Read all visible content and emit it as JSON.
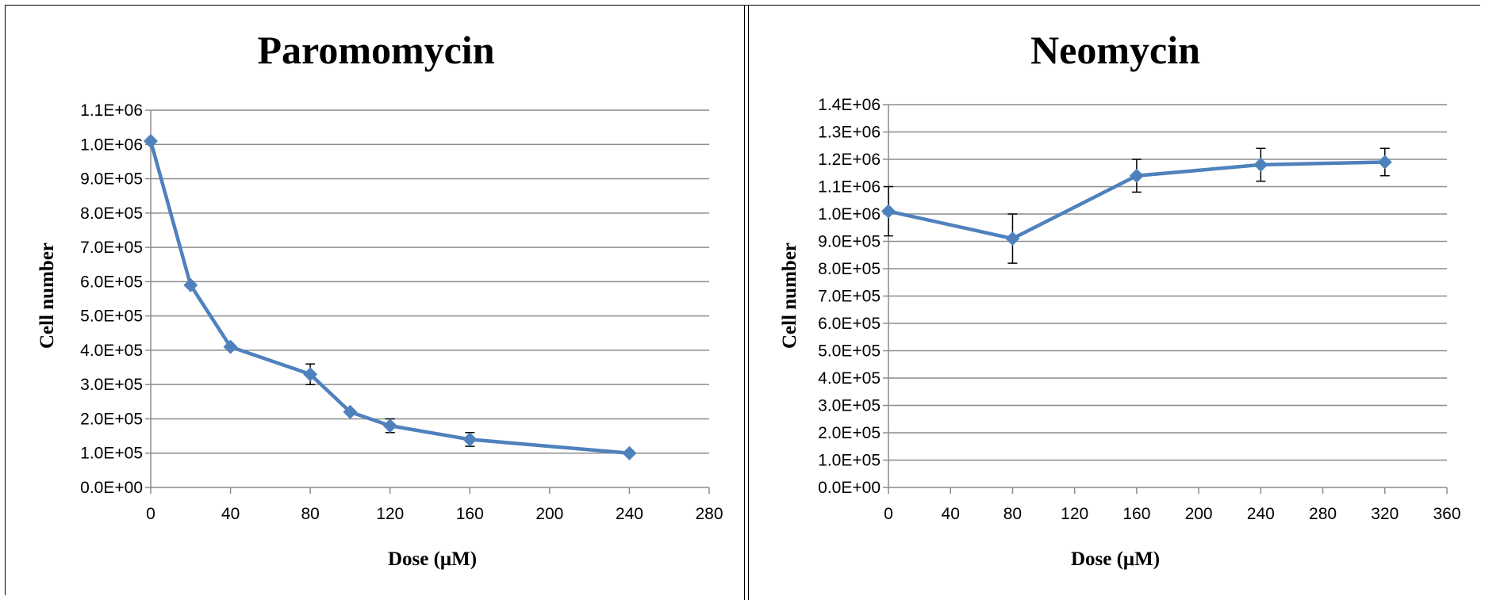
{
  "chart_data": [
    {
      "type": "line",
      "title": "Paromomycin",
      "xlabel": "Dose (μM)",
      "ylabel": "Cell number",
      "x_ticks": [
        0,
        40,
        80,
        120,
        160,
        200,
        240,
        280
      ],
      "x_tick_labels": [
        "0",
        "40",
        "80",
        "120",
        "160",
        "200",
        "240",
        "280"
      ],
      "xlim": [
        0,
        280
      ],
      "y_ticks": [
        0,
        100000,
        200000,
        300000,
        400000,
        500000,
        600000,
        700000,
        800000,
        900000,
        1000000,
        1100000
      ],
      "y_tick_labels": [
        "0.0E+00",
        "1.0E+05",
        "2.0E+05",
        "3.0E+05",
        "4.0E+05",
        "5.0E+05",
        "6.0E+05",
        "7.0E+05",
        "8.0E+05",
        "9.0E+05",
        "1.0E+06",
        "1.1E+06"
      ],
      "ylim": [
        0,
        1100000
      ],
      "grid": true,
      "series": [
        {
          "color": "#4f81bd",
          "x": [
            0,
            20,
            40,
            80,
            100,
            120,
            160,
            240
          ],
          "y": [
            1010000,
            590000,
            410000,
            330000,
            220000,
            180000,
            140000,
            100000
          ],
          "error": [
            0,
            0,
            0,
            30000,
            0,
            20000,
            20000,
            0
          ]
        }
      ]
    },
    {
      "type": "line",
      "title": "Neomycin",
      "xlabel": "Dose (μM)",
      "ylabel": "Cell number",
      "x_ticks": [
        0,
        40,
        80,
        120,
        160,
        200,
        240,
        280,
        320,
        360
      ],
      "x_tick_labels": [
        "0",
        "40",
        "80",
        "120",
        "160",
        "200",
        "240",
        "280",
        "320",
        "360"
      ],
      "xlim": [
        0,
        360
      ],
      "y_ticks": [
        0,
        100000,
        200000,
        300000,
        400000,
        500000,
        600000,
        700000,
        800000,
        900000,
        1000000,
        1100000,
        1200000,
        1300000,
        1400000
      ],
      "y_tick_labels": [
        "0.0E+00",
        "1.0E+05",
        "2.0E+05",
        "3.0E+05",
        "4.0E+05",
        "5.0E+05",
        "6.0E+05",
        "7.0E+05",
        "8.0E+05",
        "9.0E+05",
        "1.0E+06",
        "1.1E+06",
        "1.2E+06",
        "1.3E+06",
        "1.4E+06"
      ],
      "ylim": [
        0,
        1400000
      ],
      "grid": true,
      "series": [
        {
          "color": "#4f81bd",
          "x": [
            0,
            80,
            160,
            240,
            320
          ],
          "y": [
            1010000,
            910000,
            1140000,
            1180000,
            1190000
          ],
          "error": [
            90000,
            90000,
            60000,
            60000,
            50000
          ]
        }
      ]
    }
  ]
}
